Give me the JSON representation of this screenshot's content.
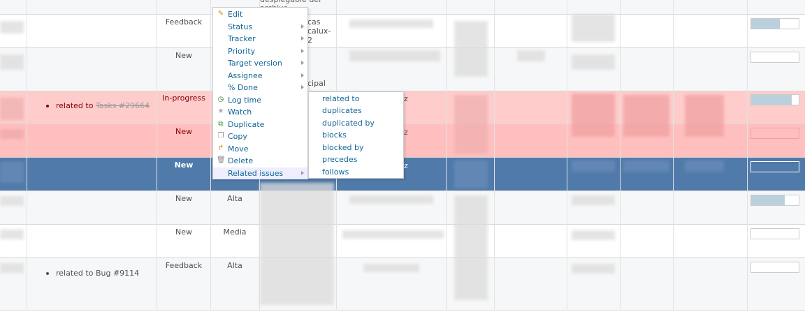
{
  "rows": [
    {
      "status": "",
      "priority": "",
      "relation": "",
      "progress": 0
    },
    {
      "status": "Feedback",
      "priority": "",
      "relation": "",
      "progress": 60,
      "subject_fragment": "cas\ncalux-\n2"
    },
    {
      "status": "New",
      "priority": "",
      "relation": "",
      "progress": 0,
      "subject_fragment": "cipal"
    },
    {
      "status": "In-progress",
      "priority": "",
      "relation_prefix": "related to",
      "relation_link": "Tasks #29664",
      "progress": 85
    },
    {
      "status": "New",
      "priority": "",
      "relation": "",
      "progress": 0
    },
    {
      "status": "New",
      "priority": "",
      "relation": "",
      "progress": 0
    },
    {
      "status": "New",
      "priority": "Alta",
      "relation": "",
      "progress": 70
    },
    {
      "status": "New",
      "priority": "Media",
      "relation": "",
      "progress": 0
    },
    {
      "status": "Feedback",
      "priority": "Alta",
      "relation_prefix": "related to",
      "relation_link": "Bug #9114",
      "progress": 0
    }
  ],
  "top_fragment": "desplegable del\narchivo",
  "context_menu": {
    "items": [
      {
        "label": "Edit",
        "icon": "pencil-icon",
        "submenu": false
      },
      {
        "label": "Status",
        "icon": "",
        "submenu": true
      },
      {
        "label": "Tracker",
        "icon": "",
        "submenu": true
      },
      {
        "label": "Priority",
        "icon": "",
        "submenu": true
      },
      {
        "label": "Target version",
        "icon": "",
        "submenu": true
      },
      {
        "label": "Assignee",
        "icon": "",
        "submenu": true
      },
      {
        "label": "% Done",
        "icon": "",
        "submenu": true
      },
      {
        "label": "Log time",
        "icon": "clock-add-icon",
        "submenu": false
      },
      {
        "label": "Watch",
        "icon": "star-icon",
        "submenu": false
      },
      {
        "label": "Duplicate",
        "icon": "duplicate-icon",
        "submenu": false
      },
      {
        "label": "Copy",
        "icon": "copy-icon",
        "submenu": false
      },
      {
        "label": "Move",
        "icon": "move-arrow-icon",
        "submenu": false
      },
      {
        "label": "Delete",
        "icon": "trash-icon",
        "submenu": false
      },
      {
        "label": "Related issues",
        "icon": "",
        "submenu": true
      }
    ]
  },
  "related_submenu": {
    "items": [
      "related to",
      "duplicates",
      "duplicated by",
      "blocks",
      "blocked by",
      "precedes",
      "follows"
    ]
  },
  "colors": {
    "link": "#116699",
    "selected_row": "#507aaa",
    "pink_row": "#ffcccc",
    "progress_fill": "#bad0dc"
  }
}
